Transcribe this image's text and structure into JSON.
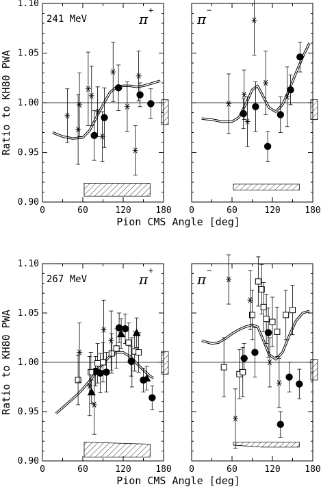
{
  "figure": {
    "axis_color": "#000000",
    "hatch_color": "#333333",
    "curve_color": "#000000"
  },
  "chart_data": [
    {
      "type": "scatter",
      "energy_label": "241 MeV",
      "particle": "π",
      "charge": "+",
      "ylabel": "Ratio to KH80 PWA",
      "xlabel": "Pion CMS Angle [deg]",
      "xlim": [
        0,
        180
      ],
      "ylim": [
        0.9,
        1.1
      ],
      "xticks": [
        "0",
        "60",
        "120",
        "180"
      ],
      "yticks": [
        "0.90",
        "0.95",
        "1.00",
        "1.05",
        "1.10"
      ],
      "show_yticklabels": true,
      "reference_line": 1.0,
      "series": [
        {
          "marker": "filled-circle",
          "points": [
            {
              "x": 77,
              "y": 0.967,
              "err": 0.025
            },
            {
              "x": 92,
              "y": 0.985,
              "err": 0.03
            },
            {
              "x": 113,
              "y": 1.015,
              "err": 0.023
            },
            {
              "x": 145,
              "y": 1.008,
              "err": 0.012
            },
            {
              "x": 161,
              "y": 0.999,
              "err": 0.015
            }
          ]
        },
        {
          "marker": "asterisk",
          "points": [
            {
              "x": 37,
              "y": 0.987,
              "err": 0.027
            },
            {
              "x": 53,
              "y": 0.973,
              "err": 0.035
            },
            {
              "x": 55,
              "y": 0.998,
              "err": 0.032
            },
            {
              "x": 68,
              "y": 1.014,
              "err": 0.037
            },
            {
              "x": 73,
              "y": 1.007,
              "err": 0.03
            },
            {
              "x": 82,
              "y": 0.991,
              "err": 0.025
            },
            {
              "x": 89,
              "y": 0.966,
              "err": 0.025
            },
            {
              "x": 105,
              "y": 1.031,
              "err": 0.03
            },
            {
              "x": 126,
              "y": 0.996,
              "err": 0.025
            },
            {
              "x": 138,
              "y": 0.952,
              "err": 0.025
            },
            {
              "x": 143,
              "y": 1.027,
              "err": 0.025
            }
          ]
        }
      ],
      "curve": [
        [
          15,
          0.97
        ],
        [
          30,
          0.966
        ],
        [
          45,
          0.964
        ],
        [
          60,
          0.965
        ],
        [
          70,
          0.972
        ],
        [
          80,
          0.985
        ],
        [
          90,
          0.998
        ],
        [
          100,
          1.01
        ],
        [
          110,
          1.016
        ],
        [
          120,
          1.017
        ],
        [
          130,
          1.017
        ],
        [
          140,
          1.016
        ],
        [
          150,
          1.017
        ],
        [
          160,
          1.019
        ],
        [
          170,
          1.021
        ],
        [
          175,
          1.022
        ]
      ],
      "sys_bar": {
        "x": 180,
        "ybot": 0.978,
        "ytop": 1.003
      },
      "band": [
        [
          62,
          0.919
        ],
        [
          160,
          0.919
        ],
        [
          160,
          0.906
        ],
        [
          62,
          0.906
        ]
      ]
    },
    {
      "type": "scatter",
      "energy_label": "",
      "particle": "π",
      "charge": "−",
      "ylabel": "",
      "xlabel": "",
      "xlim": [
        0,
        180
      ],
      "ylim": [
        0.9,
        1.1
      ],
      "xticks": [
        "0",
        "60",
        "120",
        "180"
      ],
      "yticks": [],
      "show_yticklabels": false,
      "reference_line": 1.0,
      "series": [
        {
          "marker": "filled-circle",
          "points": [
            {
              "x": 77,
              "y": 0.989,
              "err": 0.015
            },
            {
              "x": 95,
              "y": 0.996,
              "err": 0.025
            },
            {
              "x": 113,
              "y": 0.956,
              "err": 0.015
            },
            {
              "x": 132,
              "y": 0.988,
              "err": 0.018
            },
            {
              "x": 147,
              "y": 1.013,
              "err": 0.015
            },
            {
              "x": 161,
              "y": 1.046,
              "err": 0.015
            }
          ]
        },
        {
          "marker": "asterisk",
          "points": [
            {
              "x": 55,
              "y": 0.999,
              "err": 0.03
            },
            {
              "x": 78,
              "y": 1.008,
              "err": 0.025
            },
            {
              "x": 83,
              "y": 0.981,
              "err": 0.025
            },
            {
              "x": 93,
              "y": 1.083,
              "err": 0.035
            },
            {
              "x": 110,
              "y": 1.02,
              "err": 0.032
            },
            {
              "x": 142,
              "y": 1.006,
              "err": 0.03
            }
          ]
        }
      ],
      "curve": [
        [
          15,
          0.984
        ],
        [
          30,
          0.983
        ],
        [
          45,
          0.981
        ],
        [
          60,
          0.981
        ],
        [
          70,
          0.985
        ],
        [
          80,
          0.998
        ],
        [
          90,
          1.013
        ],
        [
          98,
          1.017
        ],
        [
          105,
          1.008
        ],
        [
          115,
          0.995
        ],
        [
          125,
          0.991
        ],
        [
          135,
          0.998
        ],
        [
          145,
          1.013
        ],
        [
          155,
          1.03
        ],
        [
          165,
          1.046
        ],
        [
          175,
          1.06
        ]
      ],
      "sys_bar": {
        "x": 180,
        "ybot": 0.983,
        "ytop": 1.003
      },
      "band": [
        [
          62,
          0.918
        ],
        [
          160,
          0.918
        ],
        [
          160,
          0.912
        ],
        [
          62,
          0.912
        ]
      ]
    },
    {
      "type": "scatter",
      "energy_label": "267 MeV",
      "particle": "π",
      "charge": "+",
      "ylabel": "Ratio to KH80 PWA",
      "xlabel": "Pion CMS Angle [deg]",
      "xlim": [
        0,
        180
      ],
      "ylim": [
        0.9,
        1.1
      ],
      "xticks": [
        "0",
        "60",
        "120",
        "180"
      ],
      "yticks": [
        "0.90",
        "0.95",
        "1.00",
        "1.05",
        "1.10"
      ],
      "show_yticklabels": true,
      "reference_line": 1.0,
      "series": [
        {
          "marker": "filled-circle",
          "points": [
            {
              "x": 79,
              "y": 0.991,
              "err": 0.015
            },
            {
              "x": 86,
              "y": 0.989,
              "err": 0.02
            },
            {
              "x": 95,
              "y": 0.99,
              "err": 0.02
            },
            {
              "x": 114,
              "y": 1.035,
              "err": 0.015
            },
            {
              "x": 123,
              "y": 1.034,
              "err": 0.015
            },
            {
              "x": 132,
              "y": 1.001,
              "err": 0.015
            },
            {
              "x": 150,
              "y": 0.982,
              "err": 0.012
            },
            {
              "x": 163,
              "y": 0.964,
              "err": 0.012
            }
          ]
        },
        {
          "marker": "filled-triangle",
          "points": [
            {
              "x": 73,
              "y": 0.97,
              "err": 0.012
            },
            {
              "x": 117,
              "y": 1.029,
              "err": 0.015
            },
            {
              "x": 140,
              "y": 1.03,
              "err": 0.015
            },
            {
              "x": 155,
              "y": 0.984,
              "err": 0.012
            }
          ]
        },
        {
          "marker": "open-square",
          "points": [
            {
              "x": 53,
              "y": 0.982,
              "err": 0.025
            },
            {
              "x": 72,
              "y": 0.99,
              "err": 0.02
            },
            {
              "x": 82,
              "y": 0.999,
              "err": 0.02
            },
            {
              "x": 90,
              "y": 1.0,
              "err": 0.02
            },
            {
              "x": 103,
              "y": 1.009,
              "err": 0.02
            },
            {
              "x": 110,
              "y": 1.014,
              "err": 0.02
            },
            {
              "x": 128,
              "y": 1.02,
              "err": 0.02
            },
            {
              "x": 137,
              "y": 1.011,
              "err": 0.02
            },
            {
              "x": 143,
              "y": 1.01,
              "err": 0.02
            }
          ]
        },
        {
          "marker": "asterisk",
          "points": [
            {
              "x": 55,
              "y": 1.01,
              "err": 0.03
            },
            {
              "x": 70,
              "y": 0.976,
              "err": 0.03
            },
            {
              "x": 77,
              "y": 0.957,
              "err": 0.03
            },
            {
              "x": 91,
              "y": 1.033,
              "err": 0.03
            },
            {
              "x": 102,
              "y": 1.022,
              "err": 0.03
            },
            {
              "x": 133,
              "y": 1.0,
              "err": 0.025
            }
          ]
        }
      ],
      "curve": [
        [
          20,
          0.948
        ],
        [
          30,
          0.954
        ],
        [
          40,
          0.96
        ],
        [
          50,
          0.966
        ],
        [
          60,
          0.973
        ],
        [
          70,
          0.981
        ],
        [
          80,
          0.99
        ],
        [
          90,
          0.999
        ],
        [
          100,
          1.006
        ],
        [
          110,
          1.01
        ],
        [
          120,
          1.01
        ],
        [
          130,
          1.006
        ],
        [
          140,
          0.999
        ],
        [
          150,
          0.992
        ],
        [
          160,
          0.986
        ],
        [
          165,
          0.984
        ]
      ],
      "sys_bar": {
        "x": 180,
        "ybot": 0.988,
        "ytop": 1.011
      },
      "band": [
        [
          62,
          0.919
        ],
        [
          160,
          0.917
        ],
        [
          160,
          0.904
        ],
        [
          62,
          0.904
        ]
      ]
    },
    {
      "type": "scatter",
      "energy_label": "",
      "particle": "π",
      "charge": "−",
      "ylabel": "",
      "xlabel": "",
      "xlim": [
        0,
        180
      ],
      "ylim": [
        0.9,
        1.1
      ],
      "xticks": [
        "0",
        "60",
        "120",
        "180"
      ],
      "yticks": [],
      "show_yticklabels": false,
      "reference_line": 1.0,
      "series": [
        {
          "marker": "filled-circle",
          "points": [
            {
              "x": 78,
              "y": 1.004,
              "err": 0.015
            },
            {
              "x": 94,
              "y": 1.01,
              "err": 0.025
            },
            {
              "x": 114,
              "y": 1.03,
              "err": 0.025
            },
            {
              "x": 132,
              "y": 0.937,
              "err": 0.013
            },
            {
              "x": 145,
              "y": 0.985,
              "err": 0.015
            },
            {
              "x": 160,
              "y": 0.978,
              "err": 0.015
            }
          ]
        },
        {
          "marker": "open-square",
          "points": [
            {
              "x": 48,
              "y": 0.995,
              "err": 0.03
            },
            {
              "x": 71,
              "y": 0.988,
              "err": 0.025
            },
            {
              "x": 76,
              "y": 0.99,
              "err": 0.025
            },
            {
              "x": 90,
              "y": 1.048,
              "err": 0.025
            },
            {
              "x": 99,
              "y": 1.082,
              "err": 0.025
            },
            {
              "x": 104,
              "y": 1.074,
              "err": 0.025
            },
            {
              "x": 107,
              "y": 1.056,
              "err": 0.025
            },
            {
              "x": 111,
              "y": 1.044,
              "err": 0.025
            },
            {
              "x": 120,
              "y": 1.041,
              "err": 0.025
            },
            {
              "x": 127,
              "y": 1.031,
              "err": 0.025
            },
            {
              "x": 140,
              "y": 1.048,
              "err": 0.025
            },
            {
              "x": 150,
              "y": 1.053,
              "err": 0.025
            }
          ]
        },
        {
          "marker": "asterisk",
          "points": [
            {
              "x": 55,
              "y": 1.084,
              "err": 0.025
            },
            {
              "x": 65,
              "y": 0.943,
              "err": 0.03
            },
            {
              "x": 87,
              "y": 1.063,
              "err": 0.03
            },
            {
              "x": 116,
              "y": 1.0,
              "err": 0.025
            },
            {
              "x": 130,
              "y": 0.979,
              "err": 0.025
            }
          ]
        }
      ],
      "curve": [
        [
          15,
          1.022
        ],
        [
          30,
          1.019
        ],
        [
          40,
          1.02
        ],
        [
          50,
          1.024
        ],
        [
          60,
          1.029
        ],
        [
          70,
          1.033
        ],
        [
          80,
          1.036
        ],
        [
          90,
          1.038
        ],
        [
          98,
          1.036
        ],
        [
          105,
          1.025
        ],
        [
          115,
          1.008
        ],
        [
          125,
          1.003
        ],
        [
          135,
          1.01
        ],
        [
          145,
          1.027
        ],
        [
          155,
          1.042
        ],
        [
          165,
          1.05
        ],
        [
          175,
          1.052
        ]
      ],
      "sys_bar": {
        "x": 180,
        "ybot": 0.982,
        "ytop": 1.003
      },
      "band": [
        [
          62,
          0.919
        ],
        [
          160,
          0.919
        ],
        [
          160,
          0.914
        ],
        [
          105,
          0.914
        ],
        [
          62,
          0.916
        ]
      ]
    }
  ]
}
